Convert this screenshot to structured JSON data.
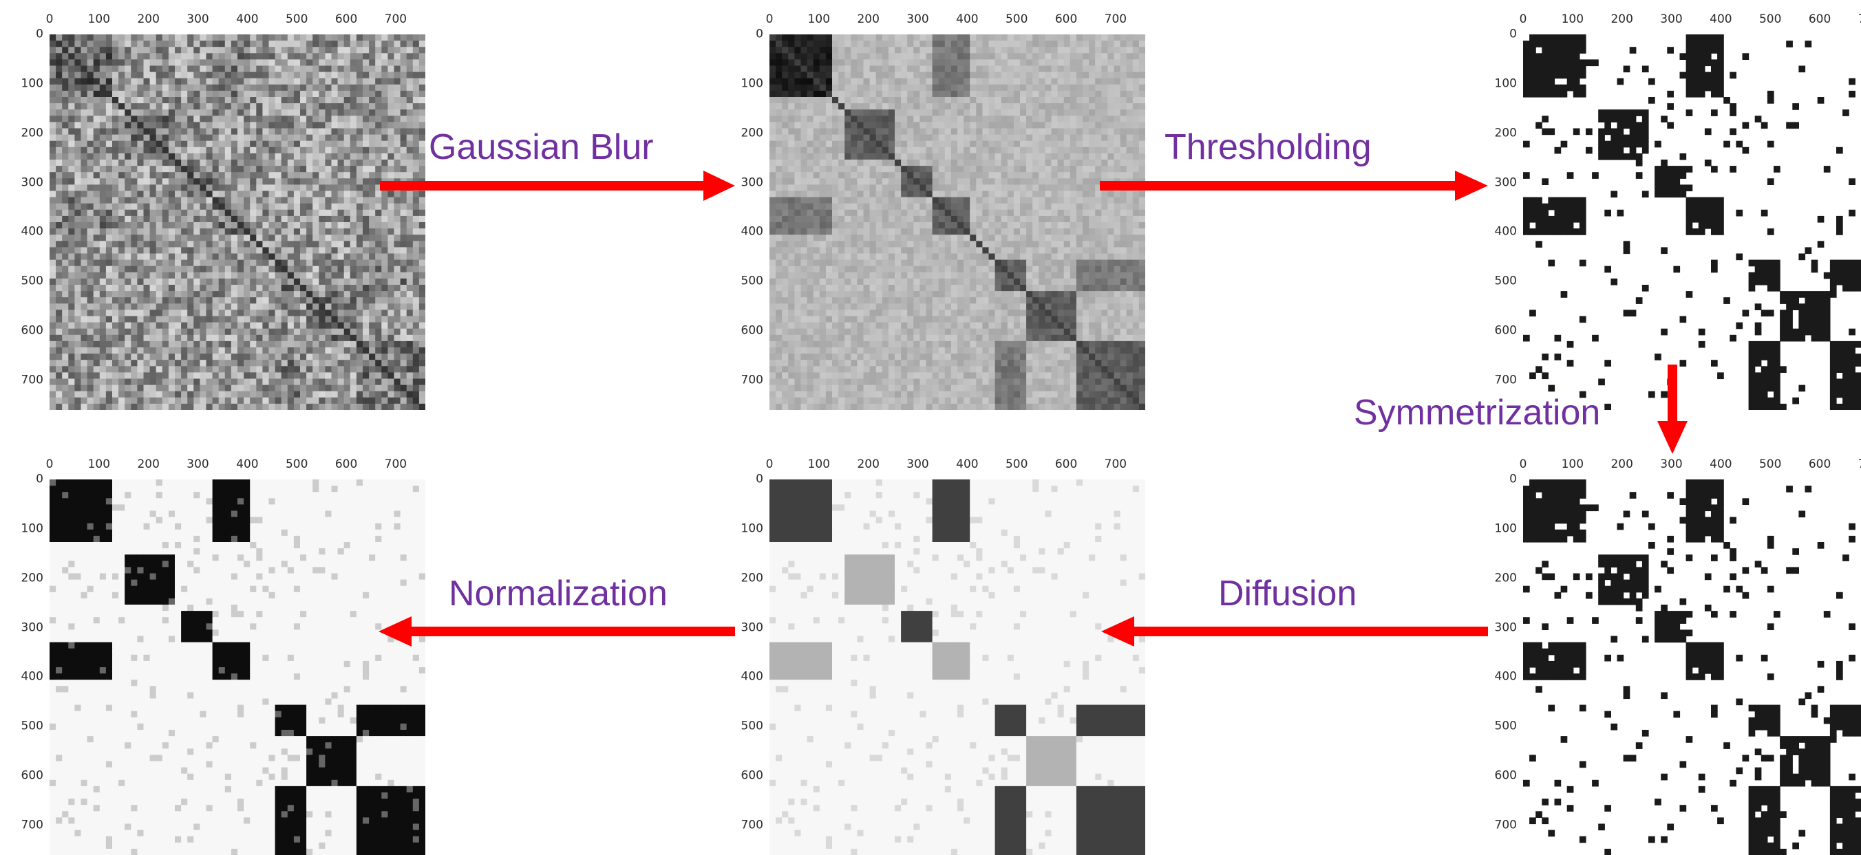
{
  "axis": {
    "x_ticks": [
      "0",
      "100",
      "200",
      "300",
      "400",
      "500",
      "600",
      "700"
    ],
    "y_ticks": [
      "0",
      "100",
      "200",
      "300",
      "400",
      "500",
      "600",
      "700"
    ],
    "range": [
      0,
      760
    ]
  },
  "colors": {
    "arrow": "#ff0000",
    "label": "#7030a0"
  },
  "panels": [
    {
      "id": "original",
      "style": "noisy"
    },
    {
      "id": "blurred",
      "style": "blur"
    },
    {
      "id": "thresholded",
      "style": "threshold"
    },
    {
      "id": "symmetrized",
      "style": "threshold"
    },
    {
      "id": "diffused",
      "style": "diffusion"
    },
    {
      "id": "normalized",
      "style": "normalized"
    }
  ],
  "steps": {
    "gaussian_blur": "Gaussian Blur",
    "thresholding": "Thresholding",
    "symmetrization": "Symmetrization",
    "diffusion": "Diffusion",
    "normalization": "Normalization"
  }
}
